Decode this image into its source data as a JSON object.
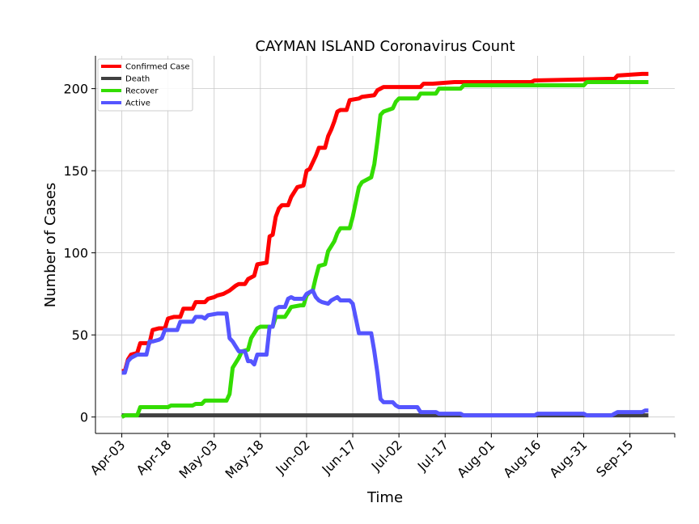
{
  "chart_data": {
    "type": "line",
    "title": "CAYMAN ISLAND Coronavirus Count",
    "xlabel": "Time",
    "ylabel": "Number of Cases",
    "x_tick_labels": [
      "Apr-03",
      "Apr-18",
      "May-03",
      "May-18",
      "Jun-02",
      "Jun-17",
      "Jul-02",
      "Jul-17",
      "Aug-01",
      "Aug-16",
      "Aug-31",
      "Sep-15"
    ],
    "x_start": "Apr-03",
    "x_end": "Sep-21",
    "y_ticks": [
      0,
      50,
      100,
      150,
      200
    ],
    "ylim": [
      -10,
      220
    ],
    "grid": true,
    "legend_position": "top-left",
    "series": [
      {
        "name": "Confirmed Case",
        "color": "#ff0000",
        "points": [
          [
            "Apr-03",
            28
          ],
          [
            "Apr-04",
            28
          ],
          [
            "Apr-05",
            35
          ],
          [
            "Apr-06",
            38
          ],
          [
            "Apr-08",
            39
          ],
          [
            "Apr-09",
            45
          ],
          [
            "Apr-12",
            45
          ],
          [
            "Apr-13",
            53
          ],
          [
            "Apr-15",
            54
          ],
          [
            "Apr-17",
            54
          ],
          [
            "Apr-18",
            60
          ],
          [
            "Apr-20",
            61
          ],
          [
            "Apr-22",
            61
          ],
          [
            "Apr-23",
            66
          ],
          [
            "Apr-26",
            66
          ],
          [
            "Apr-27",
            70
          ],
          [
            "Apr-30",
            70
          ],
          [
            "May-01",
            72
          ],
          [
            "May-03",
            73
          ],
          [
            "May-04",
            74
          ],
          [
            "May-06",
            75
          ],
          [
            "May-08",
            77
          ],
          [
            "May-10",
            80
          ],
          [
            "May-11",
            81
          ],
          [
            "May-13",
            81
          ],
          [
            "May-14",
            84
          ],
          [
            "May-16",
            86
          ],
          [
            "May-17",
            93
          ],
          [
            "May-20",
            94
          ],
          [
            "May-21",
            110
          ],
          [
            "May-22",
            111
          ],
          [
            "May-23",
            122
          ],
          [
            "May-24",
            127
          ],
          [
            "May-25",
            129
          ],
          [
            "May-27",
            129
          ],
          [
            "May-28",
            134
          ],
          [
            "May-29",
            137
          ],
          [
            "May-30",
            140
          ],
          [
            "Jun-01",
            141
          ],
          [
            "Jun-02",
            150
          ],
          [
            "Jun-03",
            151
          ],
          [
            "Jun-04",
            155
          ],
          [
            "Jun-05",
            159
          ],
          [
            "Jun-06",
            164
          ],
          [
            "Jun-08",
            164
          ],
          [
            "Jun-09",
            171
          ],
          [
            "Jun-10",
            175
          ],
          [
            "Jun-11",
            180
          ],
          [
            "Jun-12",
            186
          ],
          [
            "Jun-13",
            187
          ],
          [
            "Jun-15",
            187
          ],
          [
            "Jun-16",
            193
          ],
          [
            "Jun-19",
            194
          ],
          [
            "Jun-20",
            195
          ],
          [
            "Jun-24",
            196
          ],
          [
            "Jun-25",
            199
          ],
          [
            "Jun-26",
            200
          ],
          [
            "Jun-27",
            201
          ],
          [
            "Jul-09",
            201
          ],
          [
            "Jul-10",
            203
          ],
          [
            "Jul-13",
            203
          ],
          [
            "Jul-20",
            204
          ],
          [
            "Aug-14",
            204
          ],
          [
            "Aug-15",
            205
          ],
          [
            "Sep-10",
            206
          ],
          [
            "Sep-11",
            208
          ],
          [
            "Sep-19",
            209
          ],
          [
            "Sep-21",
            209
          ]
        ]
      },
      {
        "name": "Death",
        "color": "#404040",
        "points": [
          [
            "Apr-03",
            1
          ],
          [
            "Sep-21",
            1
          ]
        ]
      },
      {
        "name": "Recover",
        "color": "#33dd00",
        "points": [
          [
            "Apr-03",
            0
          ],
          [
            "Apr-04",
            1
          ],
          [
            "Apr-08",
            1
          ],
          [
            "Apr-09",
            6
          ],
          [
            "Apr-18",
            6
          ],
          [
            "Apr-19",
            7
          ],
          [
            "Apr-26",
            7
          ],
          [
            "Apr-27",
            8
          ],
          [
            "Apr-29",
            8
          ],
          [
            "Apr-30",
            10
          ],
          [
            "May-07",
            10
          ],
          [
            "May-08",
            14
          ],
          [
            "May-09",
            30
          ],
          [
            "May-10",
            33
          ],
          [
            "May-11",
            36
          ],
          [
            "May-12",
            40
          ],
          [
            "May-14",
            41
          ],
          [
            "May-15",
            48
          ],
          [
            "May-16",
            51
          ],
          [
            "May-17",
            54
          ],
          [
            "May-18",
            55
          ],
          [
            "May-22",
            55
          ],
          [
            "May-23",
            61
          ],
          [
            "May-26",
            61
          ],
          [
            "May-27",
            64
          ],
          [
            "May-28",
            67
          ],
          [
            "May-31",
            68
          ],
          [
            "Jun-01",
            68
          ],
          [
            "Jun-02",
            74
          ],
          [
            "Jun-03",
            76
          ],
          [
            "Jun-04",
            77
          ],
          [
            "Jun-05",
            85
          ],
          [
            "Jun-06",
            92
          ],
          [
            "Jun-08",
            93
          ],
          [
            "Jun-09",
            101
          ],
          [
            "Jun-10",
            104
          ],
          [
            "Jun-11",
            107
          ],
          [
            "Jun-12",
            112
          ],
          [
            "Jun-13",
            115
          ],
          [
            "Jun-16",
            115
          ],
          [
            "Jun-17",
            122
          ],
          [
            "Jun-18",
            131
          ],
          [
            "Jun-19",
            140
          ],
          [
            "Jun-20",
            143
          ],
          [
            "Jun-23",
            146
          ],
          [
            "Jun-24",
            154
          ],
          [
            "Jun-25",
            168
          ],
          [
            "Jun-26",
            184
          ],
          [
            "Jun-27",
            186
          ],
          [
            "Jun-30",
            188
          ],
          [
            "Jul-01",
            192
          ],
          [
            "Jul-02",
            194
          ],
          [
            "Jul-08",
            194
          ],
          [
            "Jul-09",
            197
          ],
          [
            "Jul-14",
            197
          ],
          [
            "Jul-15",
            200
          ],
          [
            "Jul-22",
            200
          ],
          [
            "Jul-23",
            202
          ],
          [
            "Aug-31",
            202
          ],
          [
            "Sep-01",
            204
          ],
          [
            "Sep-21",
            204
          ]
        ]
      },
      {
        "name": "Active",
        "color": "#5555ff",
        "points": [
          [
            "Apr-03",
            27
          ],
          [
            "Apr-04",
            27
          ],
          [
            "Apr-05",
            34
          ],
          [
            "Apr-06",
            36
          ],
          [
            "Apr-07",
            37
          ],
          [
            "Apr-08",
            38
          ],
          [
            "Apr-11",
            38
          ],
          [
            "Apr-12",
            46
          ],
          [
            "Apr-13",
            46
          ],
          [
            "Apr-15",
            47
          ],
          [
            "Apr-16",
            48
          ],
          [
            "Apr-17",
            53
          ],
          [
            "Apr-21",
            53
          ],
          [
            "Apr-22",
            58
          ],
          [
            "Apr-26",
            58
          ],
          [
            "Apr-27",
            61
          ],
          [
            "Apr-29",
            61
          ],
          [
            "Apr-30",
            60
          ],
          [
            "May-01",
            62
          ],
          [
            "May-04",
            63
          ],
          [
            "May-07",
            63
          ],
          [
            "May-08",
            48
          ],
          [
            "May-09",
            46
          ],
          [
            "May-10",
            43
          ],
          [
            "May-11",
            40
          ],
          [
            "May-13",
            40
          ],
          [
            "May-14",
            34
          ],
          [
            "May-15",
            34
          ],
          [
            "May-16",
            32
          ],
          [
            "May-17",
            38
          ],
          [
            "May-20",
            38
          ],
          [
            "May-21",
            55
          ],
          [
            "May-22",
            55
          ],
          [
            "May-23",
            66
          ],
          [
            "May-24",
            67
          ],
          [
            "May-26",
            67
          ],
          [
            "May-27",
            72
          ],
          [
            "May-28",
            73
          ],
          [
            "May-29",
            72
          ],
          [
            "Jun-01",
            72
          ],
          [
            "Jun-02",
            75
          ],
          [
            "Jun-03",
            76
          ],
          [
            "Jun-04",
            77
          ],
          [
            "Jun-05",
            73
          ],
          [
            "Jun-06",
            71
          ],
          [
            "Jun-07",
            70
          ],
          [
            "Jun-09",
            69
          ],
          [
            "Jun-10",
            71
          ],
          [
            "Jun-12",
            73
          ],
          [
            "Jun-13",
            71
          ],
          [
            "Jun-16",
            71
          ],
          [
            "Jun-17",
            69
          ],
          [
            "Jun-18",
            60
          ],
          [
            "Jun-19",
            51
          ],
          [
            "Jun-23",
            51
          ],
          [
            "Jun-24",
            40
          ],
          [
            "Jun-25",
            27
          ],
          [
            "Jun-26",
            11
          ],
          [
            "Jun-27",
            9
          ],
          [
            "Jun-30",
            9
          ],
          [
            "Jul-01",
            7
          ],
          [
            "Jul-02",
            6
          ],
          [
            "Jul-08",
            6
          ],
          [
            "Jul-09",
            3
          ],
          [
            "Jul-14",
            3
          ],
          [
            "Jul-15",
            2
          ],
          [
            "Jul-22",
            2
          ],
          [
            "Jul-23",
            1
          ],
          [
            "Aug-15",
            1
          ],
          [
            "Aug-16",
            2
          ],
          [
            "Aug-31",
            2
          ],
          [
            "Sep-01",
            1
          ],
          [
            "Sep-09",
            1
          ],
          [
            "Sep-10",
            2
          ],
          [
            "Sep-11",
            3
          ],
          [
            "Sep-19",
            3
          ],
          [
            "Sep-20",
            4
          ],
          [
            "Sep-21",
            4
          ]
        ]
      }
    ]
  }
}
